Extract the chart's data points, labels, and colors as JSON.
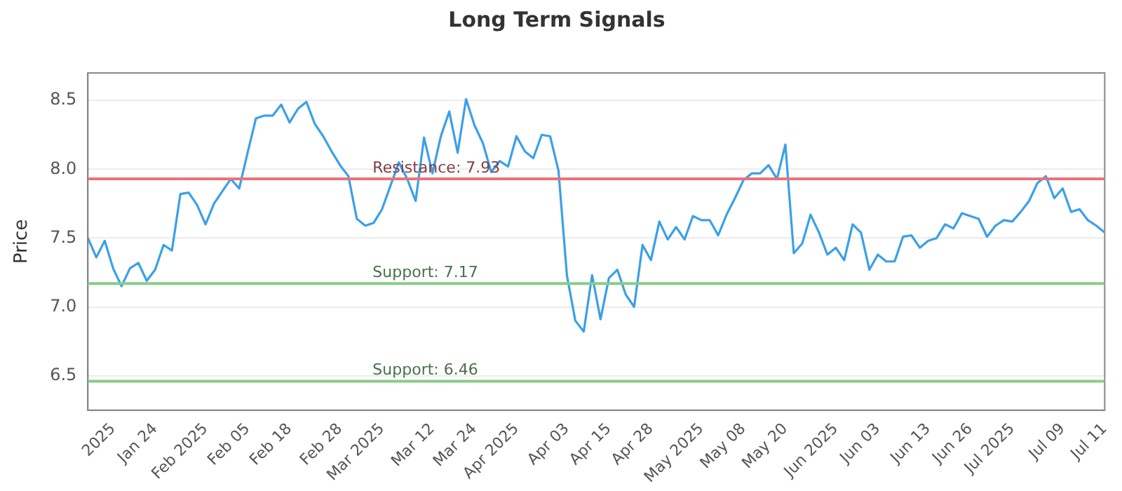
{
  "chart_data": {
    "type": "line",
    "title": "Long Term Signals",
    "ylabel": "Price",
    "categories": [
      null,
      null,
      null,
      "2025",
      null,
      null,
      null,
      null,
      "Jan 24",
      null,
      null,
      null,
      null,
      null,
      "Feb 2025",
      null,
      null,
      null,
      null,
      "Feb 05",
      null,
      null,
      null,
      null,
      "Feb 18",
      null,
      null,
      null,
      null,
      null,
      "Feb 28",
      null,
      null,
      null,
      null,
      "Mar 2025",
      null,
      null,
      null,
      null,
      null,
      "Mar 12",
      null,
      null,
      null,
      null,
      "Mar 24",
      null,
      null,
      null,
      null,
      "Apr 2025",
      null,
      null,
      null,
      null,
      null,
      "Apr 03",
      null,
      null,
      null,
      null,
      "Apr 15",
      null,
      null,
      null,
      null,
      "Apr 28",
      null,
      null,
      null,
      null,
      null,
      "May 2025",
      null,
      null,
      null,
      null,
      "May 08",
      null,
      null,
      null,
      null,
      "May 20",
      null,
      null,
      null,
      null,
      null,
      "Jun 2025",
      null,
      null,
      null,
      null,
      "Jun 03",
      null,
      null,
      null,
      null,
      null,
      "Jun 13",
      null,
      null,
      null,
      null,
      "Jun 26",
      null,
      null,
      null,
      null,
      "Jul 2025",
      null,
      null,
      null,
      null,
      null,
      "Jul 09",
      null,
      null,
      null,
      null,
      "Jul 11"
    ],
    "series": [
      {
        "color": "#3aa0e8",
        "values": [
          7.5,
          7.36,
          7.48,
          7.28,
          7.15,
          7.28,
          7.32,
          7.19,
          7.27,
          7.45,
          7.41,
          7.82,
          7.83,
          7.74,
          7.6,
          7.75,
          7.84,
          7.93,
          7.86,
          8.12,
          8.37,
          8.39,
          8.39,
          8.47,
          8.34,
          8.44,
          8.49,
          8.33,
          8.24,
          8.13,
          8.03,
          7.95,
          7.64,
          7.59,
          7.61,
          7.71,
          7.88,
          8.05,
          7.93,
          7.77,
          8.23,
          7.97,
          8.24,
          8.42,
          8.12,
          8.51,
          8.32,
          8.19,
          7.98,
          8.06,
          8.02,
          8.24,
          8.13,
          8.08,
          8.25,
          8.24,
          7.99,
          7.23,
          6.9,
          6.82,
          7.23,
          6.91,
          7.21,
          7.27,
          7.09,
          7.0,
          7.45,
          7.34,
          7.62,
          7.49,
          7.58,
          7.49,
          7.66,
          7.63,
          7.63,
          7.52,
          7.67,
          7.79,
          7.92,
          7.97,
          7.97,
          8.03,
          7.93,
          8.18,
          7.39,
          7.46,
          7.67,
          7.54,
          7.38,
          7.43,
          7.34,
          7.6,
          7.54,
          7.27,
          7.38,
          7.33,
          7.33,
          7.51,
          7.52,
          7.43,
          7.48,
          7.5,
          7.6,
          7.57,
          7.68,
          7.66,
          7.64,
          7.51,
          7.59,
          7.63,
          7.62,
          7.69,
          7.77,
          7.9,
          7.95,
          7.79,
          7.86,
          7.69,
          7.71,
          7.63,
          7.59,
          7.54
        ]
      }
    ],
    "ylim": [
      6.25,
      8.7
    ],
    "yticks": [
      6.5,
      {
        "value": 7,
        "label": "7.0"
      },
      7.5,
      {
        "value": 8,
        "label": "8.0"
      },
      8.5
    ],
    "ref_lines": [
      {
        "axis": "y",
        "value": 7.93,
        "label": "Resistance: 7.93",
        "color": "#e8737b"
      },
      {
        "axis": "y",
        "value": 7.17,
        "label": "Support: 7.17",
        "color": "#88cc88"
      },
      {
        "axis": "y",
        "value": 6.46,
        "label": "Support: 6.46",
        "color": "#88cc88"
      }
    ],
    "grid": "y",
    "legend": false,
    "marker": "none",
    "line_style": "solid"
  }
}
